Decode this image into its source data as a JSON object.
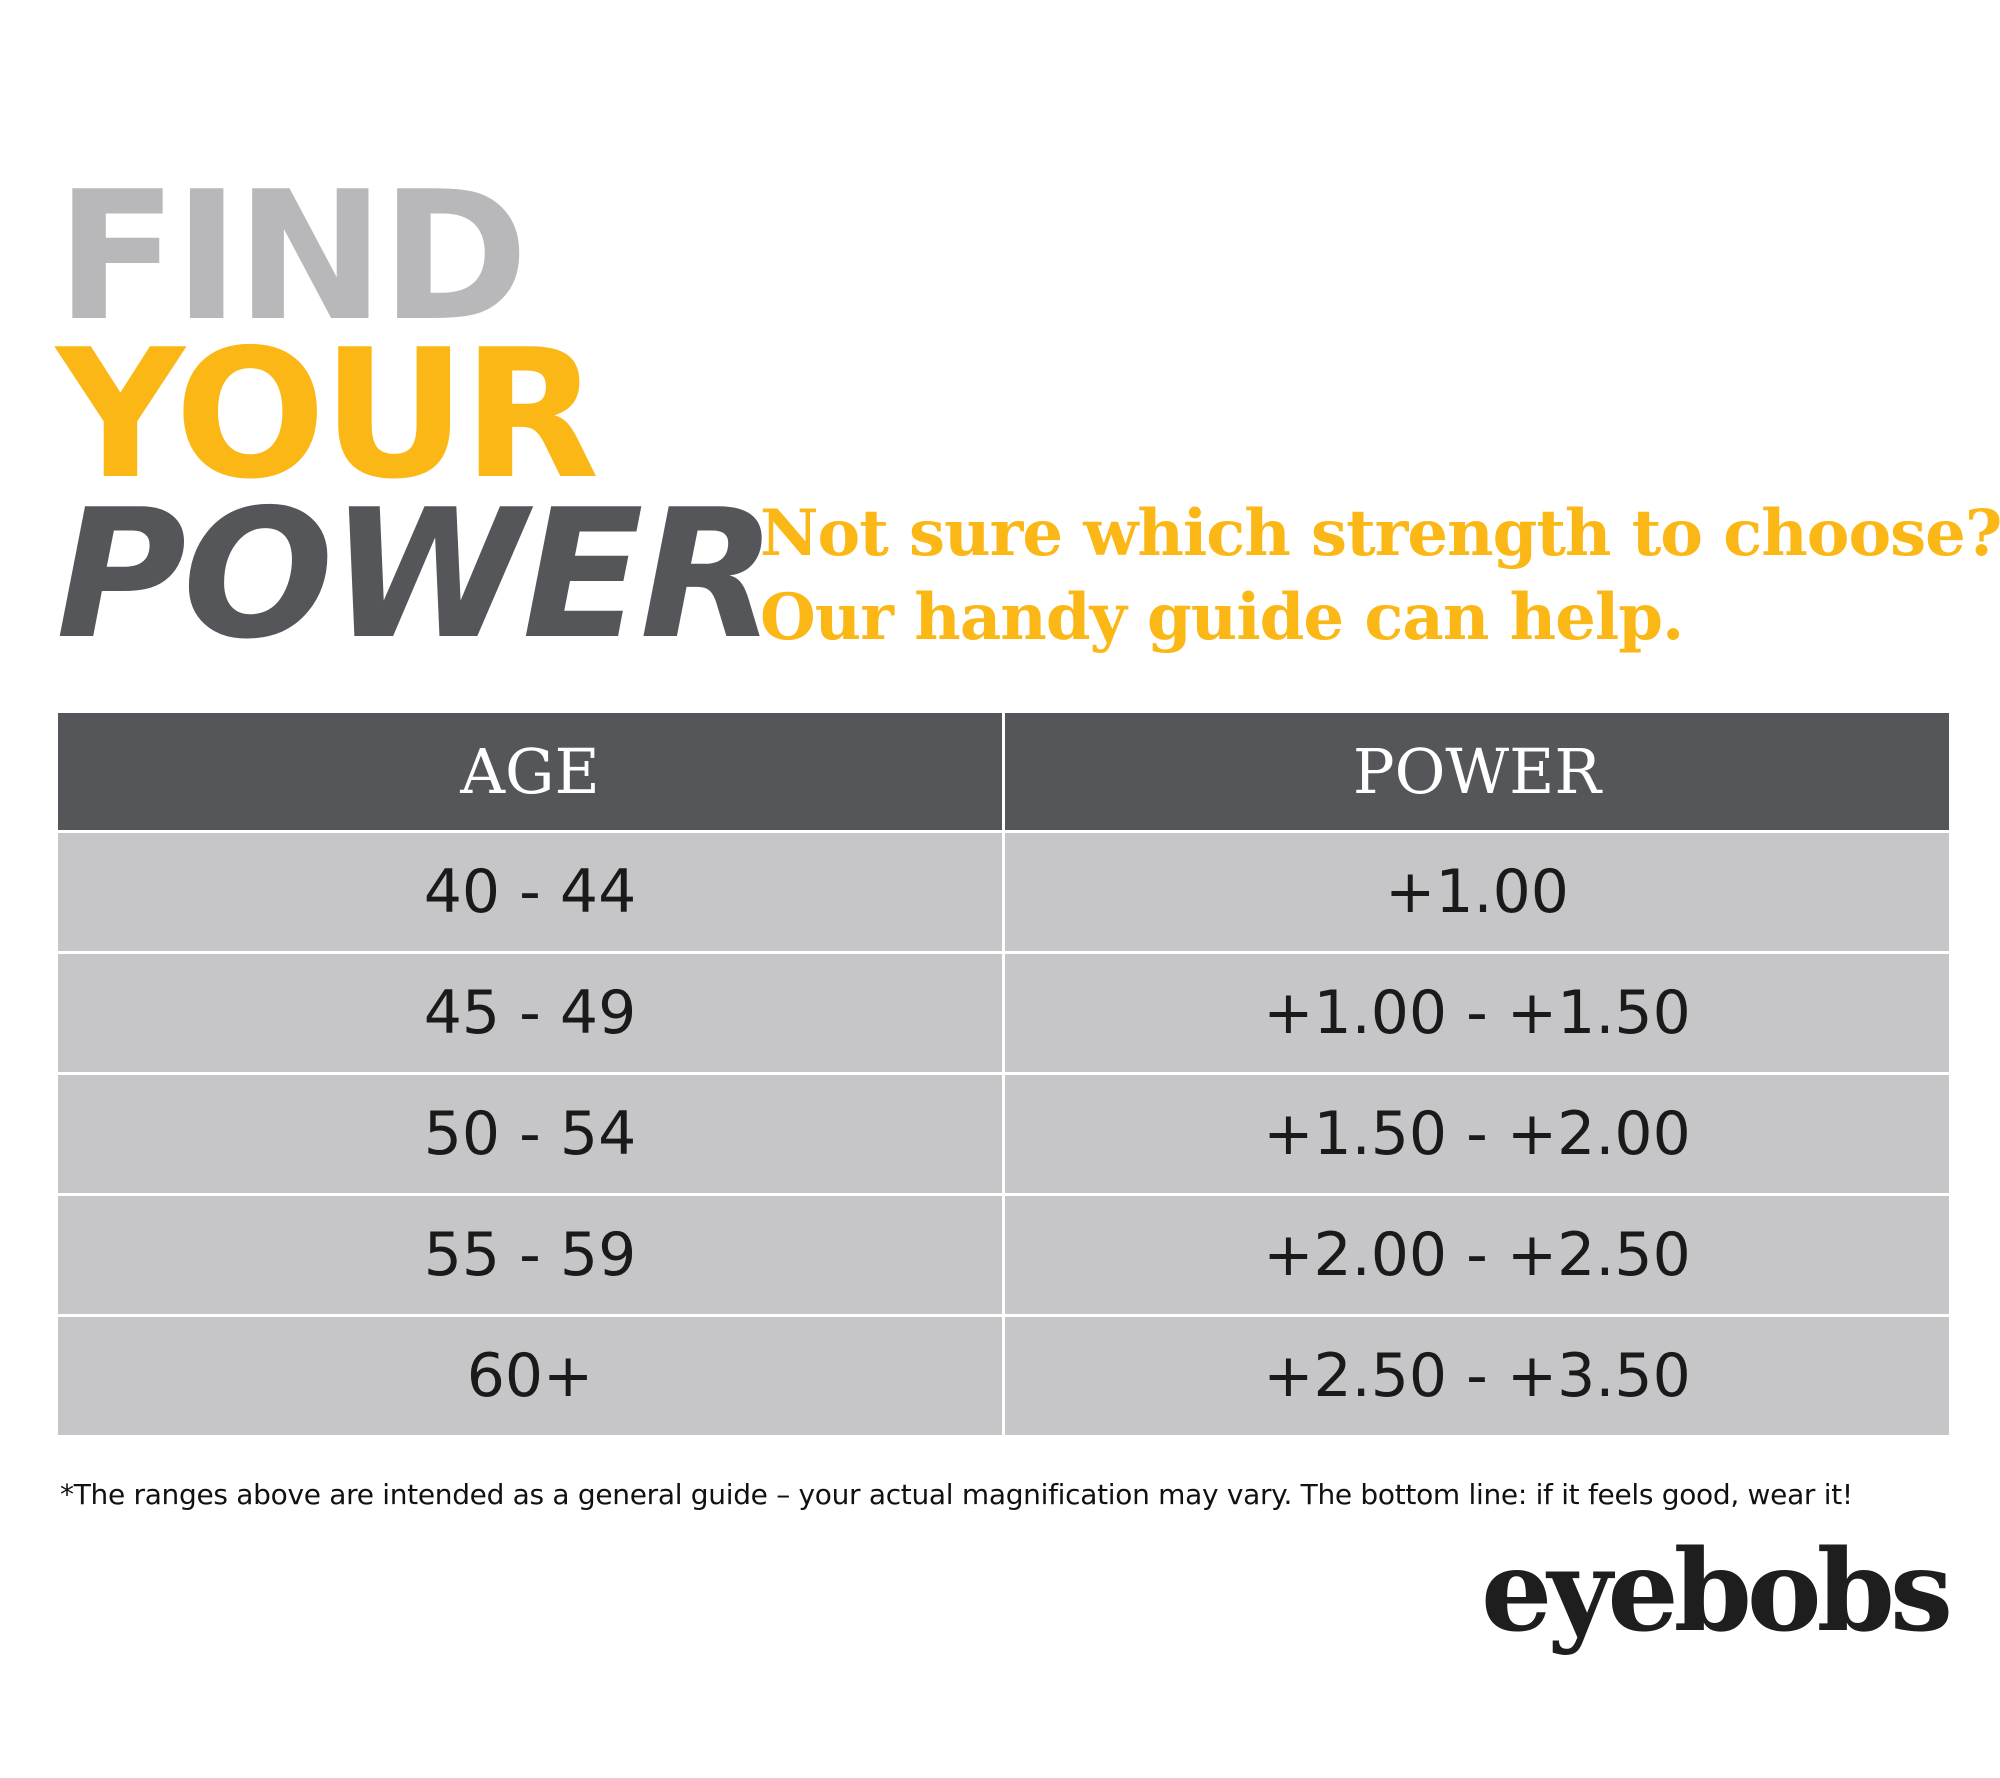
{
  "headline": {
    "line1": "FIND",
    "line2": "YOUR",
    "line3": "POWER"
  },
  "subtitle": {
    "line1": "Not sure which strength to choose?",
    "line2": "Our handy guide can help."
  },
  "table": {
    "headers": [
      "AGE",
      "POWER"
    ],
    "rows": [
      [
        "40 - 44",
        "+1.00"
      ],
      [
        "45 - 49",
        "+1.00 - +1.50"
      ],
      [
        "50 - 54",
        "+1.50 - +2.00"
      ],
      [
        "55 - 59",
        "+2.00 - +2.50"
      ],
      [
        "60+",
        "+2.50 - +3.50"
      ]
    ]
  },
  "footnote": "*The ranges above are intended as a general guide – your actual magnification may vary. The bottom line: if it feels good, wear it!",
  "logo": "eyebobs",
  "colors": {
    "gray": "#b8b8ba",
    "yellow": "#fbb715",
    "dark": "#55565a",
    "row": "#c6c6c8"
  }
}
